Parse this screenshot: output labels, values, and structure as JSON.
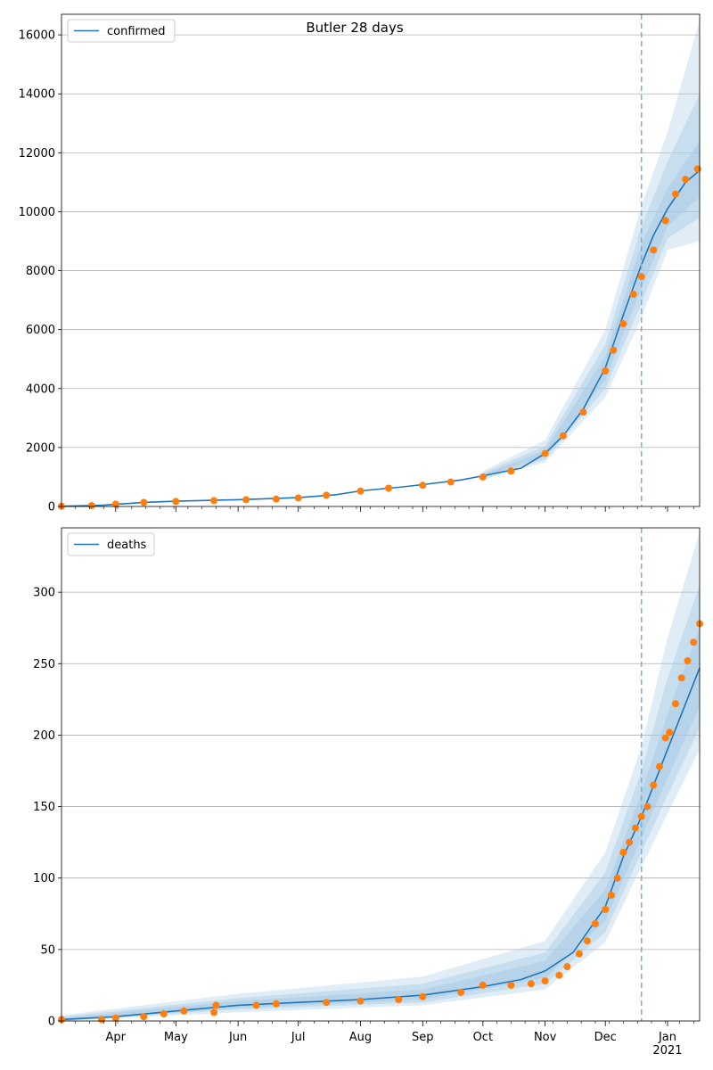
{
  "figure": {
    "title": "Butler 28 days"
  },
  "chart_data": [
    {
      "type": "line",
      "legend": {
        "label": "confirmed",
        "placement": "top-left"
      },
      "ylim": [
        0,
        16700
      ],
      "yticks": [
        0,
        2000,
        4000,
        6000,
        8000,
        10000,
        12000,
        14000,
        16000
      ],
      "ytick_labels": [
        "0",
        "2000",
        "4000",
        "6000",
        "8000",
        "10000",
        "12000",
        "14000",
        "16000"
      ],
      "grid": "horizontal",
      "forecast_start": "2020-12-19",
      "model_line": [
        [
          "2020-03-05",
          5
        ],
        [
          "2020-03-25",
          40
        ],
        [
          "2020-04-15",
          140
        ],
        [
          "2020-05-01",
          180
        ],
        [
          "2020-06-01",
          230
        ],
        [
          "2020-07-01",
          300
        ],
        [
          "2020-07-20",
          400
        ],
        [
          "2020-08-01",
          530
        ],
        [
          "2020-08-20",
          650
        ],
        [
          "2020-09-01",
          740
        ],
        [
          "2020-09-20",
          900
        ],
        [
          "2020-10-01",
          1040
        ],
        [
          "2020-10-20",
          1300
        ],
        [
          "2020-11-01",
          1800
        ],
        [
          "2020-11-10",
          2400
        ],
        [
          "2020-11-20",
          3300
        ],
        [
          "2020-12-01",
          4700
        ],
        [
          "2020-12-10",
          6500
        ],
        [
          "2020-12-19",
          8200
        ],
        [
          "2020-12-25",
          9200
        ],
        [
          "2021-01-01",
          10100
        ],
        [
          "2021-01-10",
          11000
        ],
        [
          "2021-01-17",
          11400
        ]
      ],
      "band_inner": [
        [
          "2020-10-01",
          1000,
          1080
        ],
        [
          "2020-11-01",
          1700,
          1900
        ],
        [
          "2020-12-01",
          4300,
          5100
        ],
        [
          "2020-12-19",
          7400,
          8900
        ],
        [
          "2021-01-01",
          9500,
          10800
        ],
        [
          "2021-01-17",
          10500,
          12400
        ]
      ],
      "band_mid": [
        [
          "2020-10-01",
          950,
          1130
        ],
        [
          "2020-11-01",
          1600,
          2050
        ],
        [
          "2020-12-01",
          4000,
          5500
        ],
        [
          "2020-12-19",
          6900,
          9500
        ],
        [
          "2021-01-01",
          9100,
          11700
        ],
        [
          "2021-01-17",
          9800,
          14000
        ]
      ],
      "band_outer": [
        [
          "2020-10-01",
          900,
          1200
        ],
        [
          "2020-11-01",
          1500,
          2250
        ],
        [
          "2020-12-01",
          3700,
          6000
        ],
        [
          "2020-12-19",
          6400,
          10200
        ],
        [
          "2021-01-01",
          8700,
          12700
        ],
        [
          "2021-01-17",
          9000,
          16500
        ]
      ],
      "observed": [
        [
          "2020-03-05",
          10
        ],
        [
          "2020-03-20",
          30
        ],
        [
          "2020-04-01",
          80
        ],
        [
          "2020-04-15",
          140
        ],
        [
          "2020-05-01",
          170
        ],
        [
          "2020-05-20",
          200
        ],
        [
          "2020-06-05",
          230
        ],
        [
          "2020-06-20",
          250
        ],
        [
          "2020-07-01",
          290
        ],
        [
          "2020-07-15",
          380
        ],
        [
          "2020-08-01",
          520
        ],
        [
          "2020-08-15",
          620
        ],
        [
          "2020-09-01",
          720
        ],
        [
          "2020-09-15",
          830
        ],
        [
          "2020-10-01",
          1000
        ],
        [
          "2020-10-15",
          1200
        ],
        [
          "2020-11-01",
          1800
        ],
        [
          "2020-11-10",
          2400
        ],
        [
          "2020-11-20",
          3200
        ],
        [
          "2020-12-01",
          4600
        ],
        [
          "2020-12-05",
          5300
        ],
        [
          "2020-12-10",
          6200
        ],
        [
          "2020-12-15",
          7200
        ],
        [
          "2020-12-19",
          7800
        ],
        [
          "2020-12-25",
          8700
        ],
        [
          "2020-12-31",
          9700
        ],
        [
          "2021-01-05",
          10600
        ],
        [
          "2021-01-10",
          11100
        ],
        [
          "2021-01-16",
          11450
        ]
      ]
    },
    {
      "type": "line",
      "legend": {
        "label": "deaths",
        "placement": "top-left"
      },
      "ylim": [
        0,
        345
      ],
      "yticks": [
        0,
        50,
        100,
        150,
        200,
        250,
        300
      ],
      "ytick_labels": [
        "0",
        "50",
        "100",
        "150",
        "200",
        "250",
        "300"
      ],
      "grid": "horizontal",
      "forecast_start": "2020-12-19",
      "model_line": [
        [
          "2020-03-05",
          1
        ],
        [
          "2020-04-01",
          3
        ],
        [
          "2020-05-01",
          7
        ],
        [
          "2020-06-01",
          11
        ],
        [
          "2020-07-01",
          13
        ],
        [
          "2020-08-01",
          15
        ],
        [
          "2020-09-01",
          18
        ],
        [
          "2020-10-01",
          24
        ],
        [
          "2020-10-20",
          29
        ],
        [
          "2020-11-01",
          35
        ],
        [
          "2020-11-15",
          48
        ],
        [
          "2020-12-01",
          80
        ],
        [
          "2020-12-10",
          115
        ],
        [
          "2020-12-19",
          143
        ],
        [
          "2021-01-01",
          190
        ],
        [
          "2021-01-10",
          222
        ],
        [
          "2021-01-17",
          247
        ]
      ],
      "band_inner": [
        [
          "2020-03-05",
          0,
          2
        ],
        [
          "2020-06-01",
          9,
          14
        ],
        [
          "2020-09-01",
          15,
          22
        ],
        [
          "2020-11-01",
          30,
          42
        ],
        [
          "2020-12-01",
          70,
          92
        ],
        [
          "2020-12-19",
          128,
          160
        ],
        [
          "2021-01-01",
          170,
          215
        ],
        [
          "2021-01-17",
          220,
          275
        ]
      ],
      "band_mid": [
        [
          "2020-03-05",
          0,
          3
        ],
        [
          "2020-06-01",
          8,
          16
        ],
        [
          "2020-09-01",
          13,
          26
        ],
        [
          "2020-11-01",
          26,
          48
        ],
        [
          "2020-12-01",
          62,
          104
        ],
        [
          "2020-12-19",
          118,
          175
        ],
        [
          "2021-01-01",
          158,
          240
        ],
        [
          "2021-01-17",
          205,
          305
        ]
      ],
      "band_outer": [
        [
          "2020-03-05",
          0,
          4
        ],
        [
          "2020-06-01",
          6,
          19
        ],
        [
          "2020-09-01",
          11,
          31
        ],
        [
          "2020-11-01",
          22,
          56
        ],
        [
          "2020-12-01",
          55,
          118
        ],
        [
          "2020-12-19",
          108,
          192
        ],
        [
          "2021-01-01",
          145,
          268
        ],
        [
          "2021-01-17",
          190,
          342
        ]
      ],
      "observed": [
        [
          "2020-03-05",
          1
        ],
        [
          "2020-03-25",
          1
        ],
        [
          "2020-04-01",
          2
        ],
        [
          "2020-04-15",
          3
        ],
        [
          "2020-04-25",
          5
        ],
        [
          "2020-05-05",
          7
        ],
        [
          "2020-05-20",
          6
        ],
        [
          "2020-05-21",
          11
        ],
        [
          "2020-06-10",
          11
        ],
        [
          "2020-06-20",
          12
        ],
        [
          "2020-07-15",
          13
        ],
        [
          "2020-08-01",
          14
        ],
        [
          "2020-08-20",
          15
        ],
        [
          "2020-09-01",
          17
        ],
        [
          "2020-09-20",
          20
        ],
        [
          "2020-10-01",
          25
        ],
        [
          "2020-10-15",
          25
        ],
        [
          "2020-10-25",
          26
        ],
        [
          "2020-11-01",
          28
        ],
        [
          "2020-11-08",
          32
        ],
        [
          "2020-11-12",
          38
        ],
        [
          "2020-11-18",
          47
        ],
        [
          "2020-11-22",
          56
        ],
        [
          "2020-11-26",
          68
        ],
        [
          "2020-12-01",
          78
        ],
        [
          "2020-12-04",
          88
        ],
        [
          "2020-12-07",
          100
        ],
        [
          "2020-12-10",
          118
        ],
        [
          "2020-12-13",
          125
        ],
        [
          "2020-12-16",
          135
        ],
        [
          "2020-12-19",
          143
        ],
        [
          "2020-12-22",
          150
        ],
        [
          "2020-12-25",
          165
        ],
        [
          "2020-12-28",
          178
        ],
        [
          "2020-12-31",
          198
        ],
        [
          "2021-01-02",
          202
        ],
        [
          "2021-01-05",
          222
        ],
        [
          "2021-01-08",
          240
        ],
        [
          "2021-01-11",
          252
        ],
        [
          "2021-01-14",
          265
        ],
        [
          "2021-01-17",
          278
        ]
      ]
    }
  ],
  "xaxis": {
    "start": "2020-03-05",
    "end": "2021-01-17",
    "ticks": [
      {
        "date": "2020-04-01",
        "label": "Apr"
      },
      {
        "date": "2020-05-01",
        "label": "May"
      },
      {
        "date": "2020-06-01",
        "label": "Jun"
      },
      {
        "date": "2020-07-01",
        "label": "Jul"
      },
      {
        "date": "2020-08-01",
        "label": "Aug"
      },
      {
        "date": "2020-09-01",
        "label": "Sep"
      },
      {
        "date": "2020-10-01",
        "label": "Oct"
      },
      {
        "date": "2020-11-01",
        "label": "Nov"
      },
      {
        "date": "2020-12-01",
        "label": "Dec"
      },
      {
        "date": "2021-01-01",
        "label": "Jan"
      }
    ],
    "year_label": "2021"
  },
  "colors": {
    "line": "#1f77b4",
    "observed": "#ff7f0e",
    "band": "#a9cbe6",
    "grid": "#b0b0b0",
    "forecast": "#7fb2d6"
  }
}
